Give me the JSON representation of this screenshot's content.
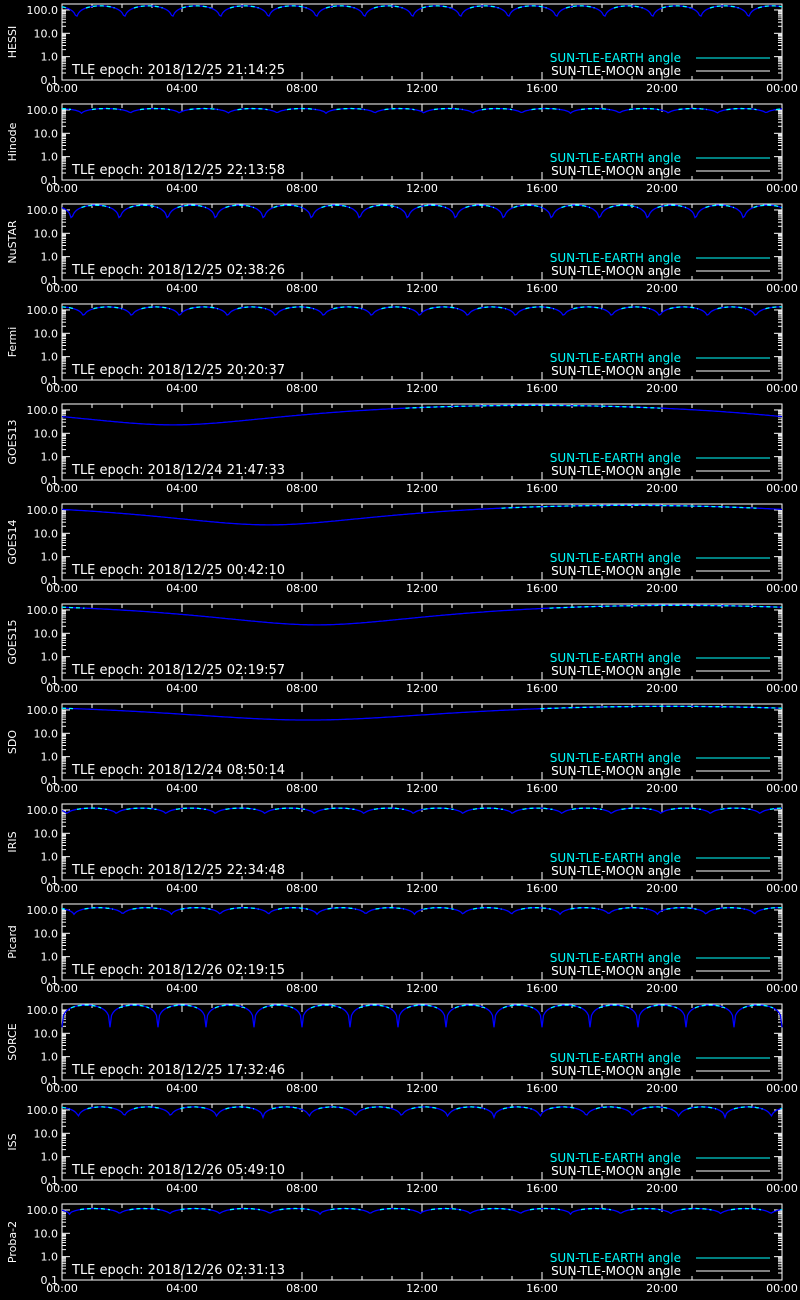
{
  "page": {
    "background_color": "#000000",
    "axis_color": "#ffffff",
    "earth_color": "#00ffff",
    "moon_color": "#ffffff",
    "curve_color": "#0000ff"
  },
  "chart_data": [
    {
      "type": "line",
      "ylabel": "HESSI",
      "tle_label": "TLE epoch: 2018/12/25 21:14:25",
      "x_ticks": [
        "00:00",
        "04:00",
        "08:00",
        "12:00",
        "16:00",
        "20:00",
        "00:00"
      ],
      "y_ticks": [
        "100.0",
        "10.0",
        "1.0",
        "0.1"
      ],
      "ylim": [
        0.1,
        180
      ],
      "yscale": "log",
      "xlim_hours": [
        0,
        24
      ],
      "legend": [
        "SUN-TLE-EARTH angle",
        "SUN-TLE-MOON angle"
      ],
      "orbit_hours": 1.6,
      "min_angle": 35,
      "max_angle": 150,
      "phase": 0.2
    },
    {
      "type": "line",
      "ylabel": "Hinode",
      "tle_label": "TLE epoch: 2018/12/25 22:13:58",
      "x_ticks": [
        "00:00",
        "04:00",
        "08:00",
        "12:00",
        "16:00",
        "20:00",
        "00:00"
      ],
      "y_ticks": [
        "100.0",
        "10.0",
        "1.0",
        "0.1"
      ],
      "ylim": [
        0.1,
        180
      ],
      "yscale": "log",
      "xlim_hours": [
        0,
        24
      ],
      "legend": [
        "SUN-TLE-EARTH angle",
        "SUN-TLE-MOON angle"
      ],
      "orbit_hours": 1.63,
      "min_angle": 70,
      "max_angle": 115,
      "phase": 0.1
    },
    {
      "type": "line",
      "ylabel": "NuSTAR",
      "tle_label": "TLE epoch: 2018/12/25 02:38:26",
      "x_ticks": [
        "00:00",
        "04:00",
        "08:00",
        "12:00",
        "16:00",
        "20:00",
        "00:00"
      ],
      "y_ticks": [
        "100.0",
        "10.0",
        "1.0",
        "0.1"
      ],
      "ylim": [
        0.1,
        180
      ],
      "yscale": "log",
      "xlim_hours": [
        0,
        24
      ],
      "legend": [
        "SUN-TLE-EARTH angle",
        "SUN-TLE-MOON angle"
      ],
      "orbit_hours": 1.6,
      "min_angle": 25,
      "max_angle": 160,
      "phase": 0.3
    },
    {
      "type": "line",
      "ylabel": "Fermi",
      "tle_label": "TLE epoch: 2018/12/25 20:20:37",
      "x_ticks": [
        "00:00",
        "04:00",
        "08:00",
        "12:00",
        "16:00",
        "20:00",
        "00:00"
      ],
      "y_ticks": [
        "100.0",
        "10.0",
        "1.0",
        "0.1"
      ],
      "ylim": [
        0.1,
        180
      ],
      "yscale": "log",
      "xlim_hours": [
        0,
        24
      ],
      "legend": [
        "SUN-TLE-EARTH angle",
        "SUN-TLE-MOON angle"
      ],
      "orbit_hours": 1.6,
      "min_angle": 45,
      "max_angle": 135,
      "phase": 0.05
    },
    {
      "type": "line",
      "ylabel": "GOES13",
      "tle_label": "TLE epoch: 2018/12/24 21:47:33",
      "x_ticks": [
        "00:00",
        "04:00",
        "08:00",
        "12:00",
        "16:00",
        "20:00",
        "00:00"
      ],
      "y_ticks": [
        "100.0",
        "10.0",
        "1.0",
        "0.1"
      ],
      "ylim": [
        0.1,
        180
      ],
      "yscale": "log",
      "xlim_hours": [
        0,
        24
      ],
      "legend": [
        "SUN-TLE-EARTH angle",
        "SUN-TLE-MOON angle"
      ],
      "geo_min_hour": 3.7,
      "min_angle": 23,
      "max_angle": 157
    },
    {
      "type": "line",
      "ylabel": "GOES14",
      "tle_label": "TLE epoch: 2018/12/25 00:42:10",
      "x_ticks": [
        "00:00",
        "04:00",
        "08:00",
        "12:00",
        "16:00",
        "20:00",
        "00:00"
      ],
      "y_ticks": [
        "100.0",
        "10.0",
        "1.0",
        "0.1"
      ],
      "ylim": [
        0.1,
        180
      ],
      "yscale": "log",
      "xlim_hours": [
        0,
        24
      ],
      "legend": [
        "SUN-TLE-EARTH angle",
        "SUN-TLE-MOON angle"
      ],
      "geo_min_hour": 6.9,
      "min_angle": 23,
      "max_angle": 157
    },
    {
      "type": "line",
      "ylabel": "GOES15",
      "tle_label": "TLE epoch: 2018/12/25 02:19:57",
      "x_ticks": [
        "00:00",
        "04:00",
        "08:00",
        "12:00",
        "16:00",
        "20:00",
        "00:00"
      ],
      "y_ticks": [
        "100.0",
        "10.0",
        "1.0",
        "0.1"
      ],
      "ylim": [
        0.1,
        180
      ],
      "yscale": "log",
      "xlim_hours": [
        0,
        24
      ],
      "legend": [
        "SUN-TLE-EARTH angle",
        "SUN-TLE-MOON angle"
      ],
      "geo_min_hour": 8.5,
      "min_angle": 23,
      "max_angle": 157
    },
    {
      "type": "line",
      "ylabel": "SDO",
      "tle_label": "TLE epoch: 2018/12/24 08:50:14",
      "x_ticks": [
        "00:00",
        "04:00",
        "08:00",
        "12:00",
        "16:00",
        "20:00",
        "00:00"
      ],
      "y_ticks": [
        "100.0",
        "10.0",
        "1.0",
        "0.1"
      ],
      "ylim": [
        0.1,
        180
      ],
      "yscale": "log",
      "xlim_hours": [
        0,
        24
      ],
      "legend": [
        "SUN-TLE-EARTH angle",
        "SUN-TLE-MOON angle"
      ],
      "geo_min_hour": 8.2,
      "min_angle": 37,
      "max_angle": 143
    },
    {
      "type": "line",
      "ylabel": "IRIS",
      "tle_label": "TLE epoch: 2018/12/25 22:34:48",
      "x_ticks": [
        "00:00",
        "04:00",
        "08:00",
        "12:00",
        "16:00",
        "20:00",
        "00:00"
      ],
      "y_ticks": [
        "100.0",
        "10.0",
        "1.0",
        "0.1"
      ],
      "ylim": [
        0.1,
        180
      ],
      "yscale": "log",
      "xlim_hours": [
        0,
        24
      ],
      "legend": [
        "SUN-TLE-EARTH angle",
        "SUN-TLE-MOON angle"
      ],
      "orbit_hours": 1.65,
      "min_angle": 65,
      "max_angle": 120,
      "phase": 0.4
    },
    {
      "type": "line",
      "ylabel": "Picard",
      "tle_label": "TLE epoch: 2018/12/26 02:19:15",
      "x_ticks": [
        "00:00",
        "04:00",
        "08:00",
        "12:00",
        "16:00",
        "20:00",
        "00:00"
      ],
      "y_ticks": [
        "100.0",
        "10.0",
        "1.0",
        "0.1"
      ],
      "ylim": [
        0.1,
        180
      ],
      "yscale": "log",
      "xlim_hours": [
        0,
        24
      ],
      "legend": [
        "SUN-TLE-EARTH angle",
        "SUN-TLE-MOON angle"
      ],
      "orbit_hours": 1.62,
      "min_angle": 60,
      "max_angle": 125,
      "phase": 0.25
    },
    {
      "type": "line",
      "ylabel": "SORCE",
      "tle_label": "TLE epoch: 2018/12/25 17:32:46",
      "x_ticks": [
        "00:00",
        "04:00",
        "08:00",
        "12:00",
        "16:00",
        "20:00",
        "00:00"
      ],
      "y_ticks": [
        "100.0",
        "10.0",
        "1.0",
        "0.1"
      ],
      "ylim": [
        0.1,
        180
      ],
      "yscale": "log",
      "xlim_hours": [
        0,
        24
      ],
      "legend": [
        "SUN-TLE-EARTH angle",
        "SUN-TLE-MOON angle"
      ],
      "orbit_hours": 1.6,
      "min_angle": 18,
      "max_angle": 162,
      "phase": 0.5
    },
    {
      "type": "line",
      "ylabel": "ISS",
      "tle_label": "TLE epoch: 2018/12/26 05:49:10",
      "x_ticks": [
        "00:00",
        "04:00",
        "08:00",
        "12:00",
        "16:00",
        "20:00",
        "00:00"
      ],
      "y_ticks": [
        "100.0",
        "10.0",
        "1.0",
        "0.1"
      ],
      "ylim": [
        0.1,
        180
      ],
      "yscale": "log",
      "xlim_hours": [
        0,
        24
      ],
      "legend": [
        "SUN-TLE-EARTH angle",
        "SUN-TLE-MOON angle"
      ],
      "orbit_hours": 1.54,
      "min_angle": 45,
      "max_angle": 135,
      "phase": 0.15
    },
    {
      "type": "line",
      "ylabel": "Proba-2",
      "tle_label": "TLE epoch: 2018/12/26 02:31:13",
      "x_ticks": [
        "00:00",
        "04:00",
        "08:00",
        "12:00",
        "16:00",
        "20:00",
        "00:00"
      ],
      "y_ticks": [
        "100.0",
        "10.0",
        "1.0",
        "0.1"
      ],
      "ylim": [
        0.1,
        180
      ],
      "yscale": "log",
      "xlim_hours": [
        0,
        24
      ],
      "legend": [
        "SUN-TLE-EARTH angle",
        "SUN-TLE-MOON angle"
      ],
      "orbit_hours": 1.67,
      "min_angle": 65,
      "max_angle": 115,
      "phase": 0.35
    }
  ]
}
